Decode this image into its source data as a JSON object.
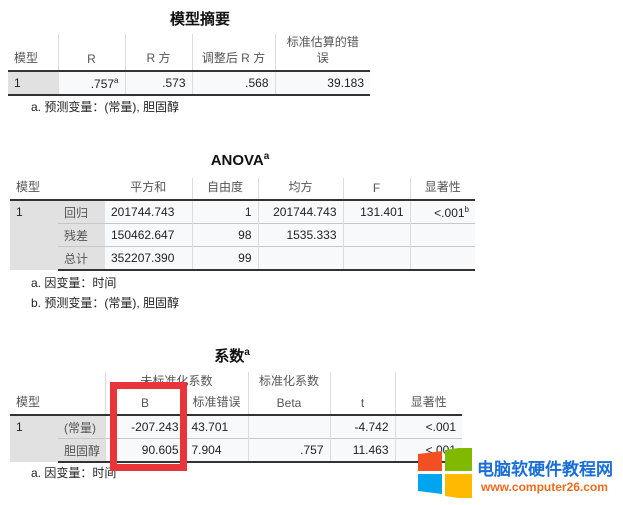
{
  "model_summary": {
    "title": "模型摘要",
    "headers": [
      "模型",
      "R",
      "R 方",
      "调整后 R 方",
      "标准估算的错误"
    ],
    "row": {
      "model": "1",
      "r": ".757",
      "r_sup": "a",
      "r2": ".573",
      "adj_r2": ".568",
      "se": "39.183"
    },
    "footnote": "a. 预测变量：(常量), 胆固醇"
  },
  "anova": {
    "title": "ANOVA",
    "title_sup": "a",
    "headers": [
      "模型",
      "",
      "平方和",
      "自由度",
      "均方",
      "F",
      "显著性"
    ],
    "model": "1",
    "rows": [
      {
        "label": "回归",
        "ss": "201744.743",
        "df": "1",
        "ms": "201744.743",
        "f": "131.401",
        "sig": "<.001",
        "sig_sup": "b"
      },
      {
        "label": "残差",
        "ss": "150462.647",
        "df": "98",
        "ms": "1535.333",
        "f": "",
        "sig": ""
      },
      {
        "label": "总计",
        "ss": "352207.390",
        "df": "99",
        "ms": "",
        "f": "",
        "sig": ""
      }
    ],
    "footnotes": [
      "a. 因变量：时间",
      "b. 预测变量：(常量), 胆固醇"
    ]
  },
  "coefficients": {
    "title": "系数",
    "title_sup": "a",
    "group_headers": [
      "未标准化系数",
      "标准化系数"
    ],
    "headers": [
      "模型",
      "",
      "B",
      "标准错误",
      "Beta",
      "t",
      "显著性"
    ],
    "model": "1",
    "rows": [
      {
        "label": "(常量)",
        "b": "-207.243",
        "se": "43.701",
        "beta": "",
        "t": "-4.742",
        "sig": "<.001"
      },
      {
        "label": "胆固醇",
        "b": "90.605",
        "se": "7.904",
        "beta": ".757",
        "t": "11.463",
        "sig": "<.001"
      }
    ],
    "footnote": "a. 因变量：时间"
  },
  "highlight_color": "#e8353a",
  "watermark": {
    "name": "电脑软硬件教程网",
    "url": "www.computer26.com",
    "colors": [
      "#f25022",
      "#7fba00",
      "#00a4ef",
      "#ffb900"
    ]
  }
}
